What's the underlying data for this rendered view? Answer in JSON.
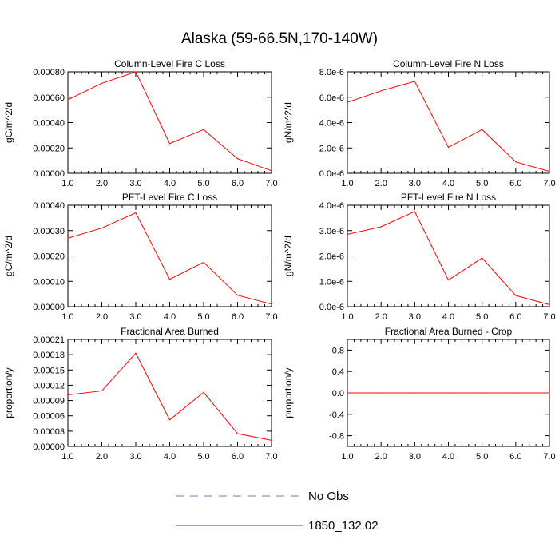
{
  "title": "Alaska (59-66.5N,170-140W)",
  "colors": {
    "model_line": "#ff0000",
    "obs_line": "#7a7ab0",
    "axis": "#000000"
  },
  "chart_data": [
    {
      "type": "line",
      "title": "Column-Level Fire C Loss",
      "ylabel": "gC/m^2/d",
      "x": [
        1,
        2,
        3,
        4,
        5,
        6,
        7
      ],
      "xticks": [
        "1.0",
        "2.0",
        "3.0",
        "4.0",
        "5.0",
        "6.0",
        "7.0"
      ],
      "xlim": [
        1,
        7
      ],
      "ylim": [
        0,
        0.0008
      ],
      "yticks": [
        0,
        0.0002,
        0.0004,
        0.0006,
        0.0008
      ],
      "ytick_labels": [
        "0.00000",
        "0.00020",
        "0.00040",
        "0.00060",
        "0.00080"
      ],
      "series": [
        {
          "name": "1850_132.02",
          "values": [
            0.00058,
            0.00071,
            0.0008,
            0.000235,
            0.000345,
            0.000115,
            2e-05
          ]
        }
      ]
    },
    {
      "type": "line",
      "title": "Column-Level Fire N Loss",
      "ylabel": "gN/m^2/d",
      "x": [
        1,
        2,
        3,
        4,
        5,
        6,
        7
      ],
      "xticks": [
        "1.0",
        "2.0",
        "3.0",
        "4.0",
        "5.0",
        "6.0",
        "7.0"
      ],
      "xlim": [
        1,
        7
      ],
      "ylim": [
        0,
        8e-06
      ],
      "yticks": [
        0,
        2e-06,
        4e-06,
        6e-06,
        8e-06
      ],
      "ytick_labels": [
        "0.0e-6",
        "2.0e-6",
        "4.0e-6",
        "6.0e-6",
        "8.0e-6"
      ],
      "series": [
        {
          "name": "1850_132.02",
          "values": [
            5.6e-06,
            6.5e-06,
            7.25e-06,
            2.05e-06,
            3.45e-06,
            9e-07,
            1.5e-07
          ]
        }
      ]
    },
    {
      "type": "line",
      "title": "PFT-Level Fire C Loss",
      "ylabel": "gC/m^2/d",
      "x": [
        1,
        2,
        3,
        4,
        5,
        6,
        7
      ],
      "xticks": [
        "1.0",
        "2.0",
        "3.0",
        "4.0",
        "5.0",
        "6.0",
        "7.0"
      ],
      "xlim": [
        1,
        7
      ],
      "ylim": [
        0,
        0.0004
      ],
      "yticks": [
        0,
        0.0001,
        0.0002,
        0.0003,
        0.0004
      ],
      "ytick_labels": [
        "0.00000",
        "0.00010",
        "0.00020",
        "0.00030",
        "0.00040"
      ],
      "series": [
        {
          "name": "1850_132.02",
          "values": [
            0.00027,
            0.00031,
            0.00037,
            0.000108,
            0.000175,
            4.5e-05,
            1e-05
          ]
        }
      ]
    },
    {
      "type": "line",
      "title": "PFT-Level Fire N Loss",
      "ylabel": "gN/m^2/d",
      "x": [
        1,
        2,
        3,
        4,
        5,
        6,
        7
      ],
      "xticks": [
        "1.0",
        "2.0",
        "3.0",
        "4.0",
        "5.0",
        "6.0",
        "7.0"
      ],
      "xlim": [
        1,
        7
      ],
      "ylim": [
        0,
        4e-06
      ],
      "yticks": [
        0,
        1e-06,
        2e-06,
        3e-06,
        4e-06
      ],
      "ytick_labels": [
        "0.0e-6",
        "1.0e-6",
        "2.0e-6",
        "3.0e-6",
        "4.0e-6"
      ],
      "series": [
        {
          "name": "1850_132.02",
          "values": [
            2.85e-06,
            3.15e-06,
            3.75e-06,
            1.05e-06,
            1.92e-06,
            4.4e-07,
            8e-08
          ]
        }
      ]
    },
    {
      "type": "line",
      "title": "Fractional Area Burned",
      "ylabel": "proportion/y",
      "x": [
        1,
        2,
        3,
        4,
        5,
        6,
        7
      ],
      "xticks": [
        "1.0",
        "2.0",
        "3.0",
        "4.0",
        "5.0",
        "6.0",
        "7.0"
      ],
      "xlim": [
        1,
        7
      ],
      "ylim": [
        0,
        0.00021
      ],
      "yticks": [
        0,
        3e-05,
        6e-05,
        9e-05,
        0.00012,
        0.00015,
        0.00018,
        0.00021
      ],
      "ytick_labels": [
        "0.00000",
        "0.00003",
        "0.00006",
        "0.00009",
        "0.00012",
        "0.00015",
        "0.00018",
        "0.00021"
      ],
      "series": [
        {
          "name": "1850_132.02",
          "values": [
            0.000101,
            0.000109,
            0.000183,
            5.2e-05,
            0.000106,
            2.5e-05,
            1.2e-05
          ]
        }
      ]
    },
    {
      "type": "line",
      "title": "Fractional Area Burned - Crop",
      "ylabel": "proportion/y",
      "x": [
        1,
        2,
        3,
        4,
        5,
        6,
        7
      ],
      "xticks": [
        "1.0",
        "2.0",
        "3.0",
        "4.0",
        "5.0",
        "6.0",
        "7.0"
      ],
      "xlim": [
        1,
        7
      ],
      "ylim": [
        -1,
        1
      ],
      "yticks": [
        -0.8,
        -0.4,
        0,
        0.4,
        0.8
      ],
      "ytick_labels": [
        "-0.8",
        "-0.4",
        "0.0",
        "0.4",
        "0.8"
      ],
      "series": [
        {
          "name": "1850_132.02",
          "values": [
            0,
            0,
            0,
            0,
            0,
            0,
            0
          ]
        }
      ]
    }
  ],
  "legend": [
    {
      "label": "No Obs",
      "style": "dashed"
    },
    {
      "label": "1850_132.02",
      "style": "solid"
    }
  ]
}
